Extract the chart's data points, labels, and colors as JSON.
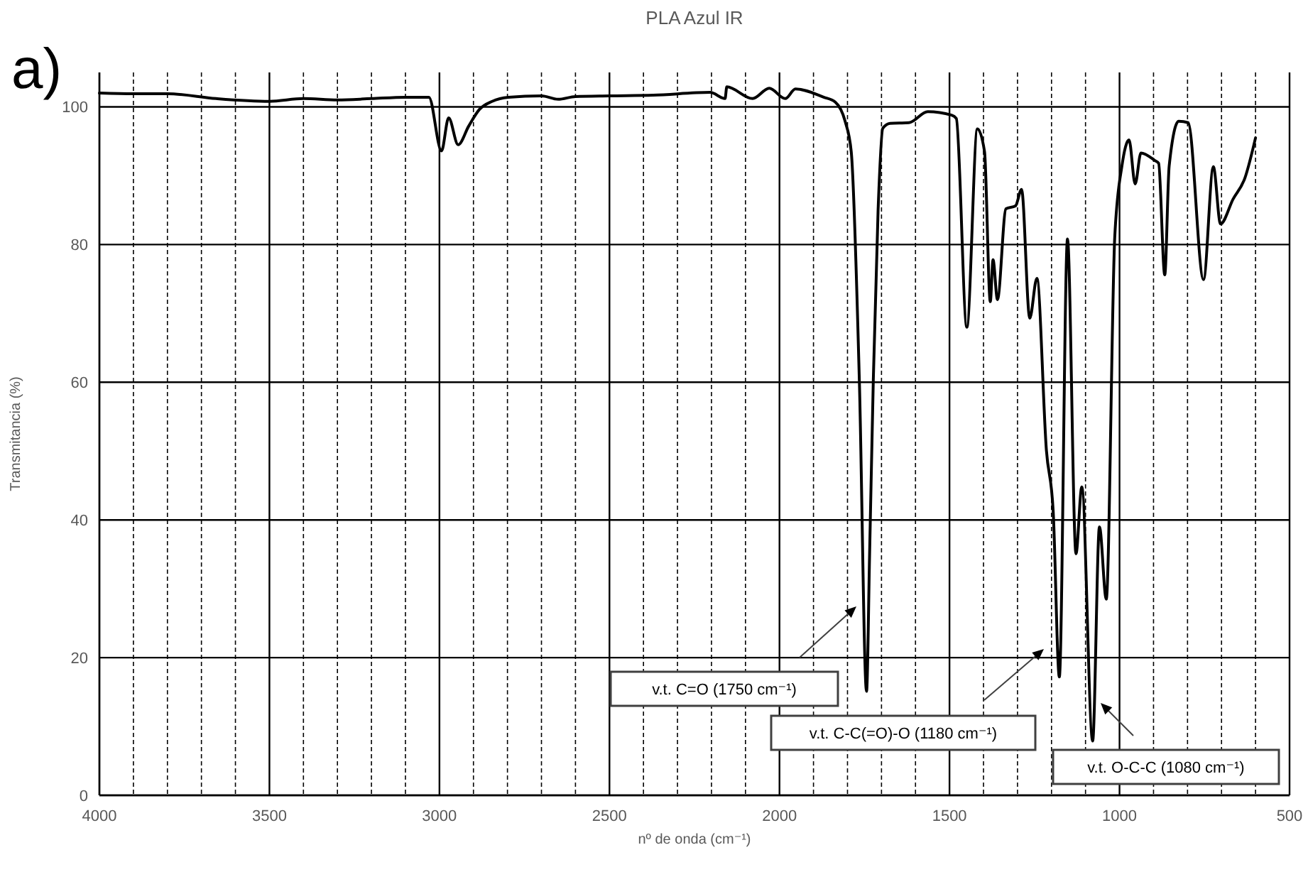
{
  "chart_data": {
    "type": "line",
    "title": "PLA Azul IR",
    "xlabel": "nº de onda (cm⁻¹)",
    "ylabel": "Transmitancia (%)",
    "x": [
      4000,
      3900,
      3800,
      3657,
      3500,
      3400,
      3300,
      3200,
      3100,
      3031,
      2994,
      2973,
      2945,
      2914,
      2883,
      2845,
      2797,
      2700,
      2651,
      2600,
      2500,
      2371,
      2204,
      2160,
      2155,
      2079,
      2030,
      1983,
      1953,
      1870,
      1836,
      1807,
      1789,
      1765,
      1744,
      1735,
      1724,
      1710,
      1696,
      1675,
      1619,
      1564,
      1494,
      1480,
      1449,
      1418,
      1397,
      1380,
      1372,
      1359,
      1334,
      1306,
      1288,
      1264,
      1243,
      1215,
      1195,
      1177,
      1153,
      1128,
      1111,
      1079,
      1059,
      1039,
      1014,
      993,
      972,
      954,
      937,
      896,
      885,
      867,
      854,
      826,
      798,
      753,
      724,
      703,
      666,
      631,
      600
    ],
    "series": [
      {
        "color": "#000000",
        "values": [
          102,
          101.9,
          101.9,
          101.2,
          100.8,
          101.2,
          101,
          101.2,
          101.4,
          101.4,
          93.6,
          98.4,
          94.5,
          97.2,
          99.6,
          100.8,
          101.4,
          101.6,
          101.1,
          101.5,
          101.6,
          101.7,
          102.1,
          101.2,
          102.9,
          101.2,
          102.7,
          101.2,
          102.6,
          101.4,
          100.7,
          97.9,
          93.5,
          60,
          15.1,
          35,
          60.5,
          85,
          96.9,
          97.6,
          97.7,
          99.3,
          98.8,
          98.3,
          68,
          96.8,
          93.5,
          71.7,
          77.8,
          72,
          85.2,
          85.6,
          88,
          69.3,
          75.1,
          50.1,
          41.2,
          17.2,
          80.8,
          35.1,
          44.8,
          7.9,
          39,
          28.5,
          81.1,
          91.4,
          95.2,
          88.8,
          93.3,
          92.2,
          91.8,
          75.6,
          91.4,
          97.9,
          97.7,
          74.9,
          91.3,
          83,
          86.6,
          89.7,
          95.5
        ]
      }
    ],
    "xlim": [
      4000,
      500
    ],
    "ylim": [
      0,
      105
    ],
    "xticks": [
      4000,
      {
        "value": 3900,
        "label": null
      },
      {
        "value": 3800,
        "label": null
      },
      {
        "value": 3700,
        "label": null
      },
      {
        "value": 3600,
        "label": null
      },
      3500,
      {
        "value": 3400,
        "label": null
      },
      {
        "value": 3300,
        "label": null
      },
      {
        "value": 3200,
        "label": null
      },
      {
        "value": 3100,
        "label": null
      },
      3000,
      {
        "value": 2900,
        "label": null
      },
      {
        "value": 2800,
        "label": null
      },
      {
        "value": 2700,
        "label": null
      },
      {
        "value": 2600,
        "label": null
      },
      2500,
      {
        "value": 2400,
        "label": null
      },
      {
        "value": 2300,
        "label": null
      },
      {
        "value": 2200,
        "label": null
      },
      {
        "value": 2100,
        "label": null
      },
      2000,
      {
        "value": 1900,
        "label": null
      },
      {
        "value": 1800,
        "label": null
      },
      {
        "value": 1700,
        "label": null
      },
      {
        "value": 1600,
        "label": null
      },
      1500,
      {
        "value": 1400,
        "label": null
      },
      {
        "value": 1300,
        "label": null
      },
      {
        "value": 1200,
        "label": null
      },
      {
        "value": 1100,
        "label": null
      },
      1000,
      {
        "value": 900,
        "label": null
      },
      {
        "value": 800,
        "label": null
      },
      {
        "value": 700,
        "label": null
      },
      {
        "value": 600,
        "label": null
      },
      500
    ],
    "yticks": [
      0,
      20,
      40,
      60,
      80,
      100
    ],
    "grid": true,
    "marker": "none",
    "line_style": "solid",
    "annotations": [
      "a)",
      "v.t. C=O (1750 cm⁻¹)",
      "v.t. C-C(=O)-O (1180 cm⁻¹)",
      "v.t. O-C-C (1080 cm⁻¹)"
    ]
  }
}
